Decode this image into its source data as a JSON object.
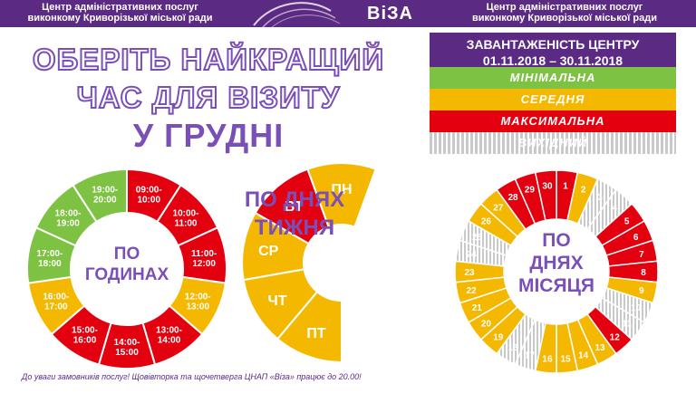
{
  "header": {
    "org_left_line1": "Центр адміністративних послуг",
    "org_left_line2": "виконкому Криворізької міської ради",
    "logo": "ВіЗА",
    "org_right_line1": "Центр адміністративних послуг",
    "org_right_line2": "виконкому Криворізької міської ради"
  },
  "headline": {
    "line1": "ОБЕРІТЬ НАЙКРАЩИЙ",
    "line2": "ЧАС ДЛЯ ВІЗИТУ",
    "line3": "У ГРУДНІ"
  },
  "legend": {
    "title_line1": "ЗАВАНТАЖЕНІСТЬ ЦЕНТРУ",
    "title_line2": "01.11.2018 – 30.11.2018",
    "minimal": "МІНІМАЛЬНА",
    "medium": "СЕРЕДНЯ",
    "maximal": "МАКСИМАЛЬНА",
    "dayoff": "ВИХІДНИЙ"
  },
  "colors": {
    "green": "#7dc242",
    "yellow": "#f5b800",
    "red": "#e3000f",
    "gray": "#c9c9c9",
    "purple": "#7a4fb8",
    "dark_purple": "#5b2b84"
  },
  "hours_chart": {
    "center_line1": "ПО",
    "center_line2": "ГОДИНАХ",
    "segments": [
      {
        "label": "09:00-10:00",
        "level": "red"
      },
      {
        "label": "10:00-11:00",
        "level": "red"
      },
      {
        "label": "11:00-12:00",
        "level": "red"
      },
      {
        "label": "12:00-13:00",
        "level": "yellow"
      },
      {
        "label": "13:00-14:00",
        "level": "red"
      },
      {
        "label": "14:00-15:00",
        "level": "red"
      },
      {
        "label": "15:00-16:00",
        "level": "red"
      },
      {
        "label": "16:00-17:00",
        "level": "yellow"
      },
      {
        "label": "17:00-18:00",
        "level": "green"
      },
      {
        "label": "18:00-19:00",
        "level": "green"
      },
      {
        "label": "19:00-20:00",
        "level": "green"
      }
    ]
  },
  "weekday_chart": {
    "title_line1": "ПО ДНЯХ",
    "title_line2": "ТИЖНЯ",
    "segments": [
      {
        "label": "ПТ",
        "level": "yellow"
      },
      {
        "label": "ЧТ",
        "level": "yellow"
      },
      {
        "label": "СР",
        "level": "yellow"
      },
      {
        "label": "ВТ",
        "level": "red"
      },
      {
        "label": "ПН",
        "level": "yellow"
      }
    ]
  },
  "month_chart": {
    "center_line1": "ПО",
    "center_line2": "ДНЯХ",
    "center_line3": "МІСЯЦЯ",
    "days": [
      {
        "label": "1",
        "level": "red"
      },
      {
        "label": "2",
        "level": "yellow"
      },
      {
        "label": "3",
        "level": "gray"
      },
      {
        "label": "4",
        "level": "gray"
      },
      {
        "label": "5",
        "level": "red"
      },
      {
        "label": "6",
        "level": "red"
      },
      {
        "label": "7",
        "level": "red"
      },
      {
        "label": "8",
        "level": "red"
      },
      {
        "label": "9",
        "level": "yellow"
      },
      {
        "label": "10",
        "level": "gray"
      },
      {
        "label": "11",
        "level": "gray"
      },
      {
        "label": "12",
        "level": "red"
      },
      {
        "label": "13",
        "level": "yellow"
      },
      {
        "label": "14",
        "level": "yellow"
      },
      {
        "label": "15",
        "level": "yellow"
      },
      {
        "label": "16",
        "level": "yellow"
      },
      {
        "label": "17",
        "level": "gray"
      },
      {
        "label": "18",
        "level": "gray"
      },
      {
        "label": "19",
        "level": "yellow"
      },
      {
        "label": "20",
        "level": "yellow"
      },
      {
        "label": "21",
        "level": "yellow"
      },
      {
        "label": "22",
        "level": "yellow"
      },
      {
        "label": "23",
        "level": "yellow"
      },
      {
        "label": "24",
        "level": "gray"
      },
      {
        "label": "25",
        "level": "gray"
      },
      {
        "label": "26",
        "level": "yellow"
      },
      {
        "label": "27",
        "level": "yellow"
      },
      {
        "label": "28",
        "level": "red"
      },
      {
        "label": "29",
        "level": "red"
      },
      {
        "label": "30",
        "level": "red"
      }
    ]
  },
  "note": "До уваги замовників послуг! Щовівторка та щочетверга ЦНАП «Віза» працює до 20.00!"
}
